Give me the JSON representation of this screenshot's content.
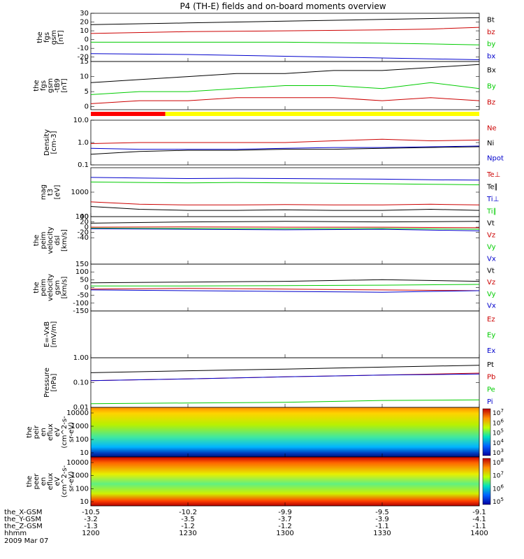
{
  "title": "P4 (TH-E) fields and on-board moments overview",
  "date_label": "2009 Mar 07",
  "chart_data": [
    {
      "type": "line",
      "panel": "fgs-gsm",
      "ylabel": [
        "the",
        "fgs",
        "gsm",
        "[nT]"
      ],
      "ylim": [
        -25,
        30
      ],
      "yticks": [
        30,
        20,
        10,
        0,
        -10,
        -20
      ],
      "series": [
        {
          "name": "Bt",
          "color": "#000000",
          "x": [
            1200,
            1230,
            1300,
            1330,
            1345,
            1400
          ],
          "values": [
            17,
            19,
            21,
            23,
            24,
            25
          ]
        },
        {
          "name": "bz",
          "color": "#cc0000",
          "x": [
            1200,
            1230,
            1300,
            1330,
            1345,
            1400
          ],
          "values": [
            7,
            9,
            10,
            11,
            12,
            14
          ]
        },
        {
          "name": "by",
          "color": "#00cc00",
          "x": [
            1200,
            1230,
            1300,
            1330,
            1345,
            1400
          ],
          "values": [
            -3,
            -3,
            -3,
            -4,
            -5,
            -6
          ]
        },
        {
          "name": "bx",
          "color": "#0000cc",
          "x": [
            1200,
            1230,
            1300,
            1330,
            1345,
            1400
          ],
          "values": [
            -16,
            -17,
            -19,
            -21,
            -22,
            -23
          ]
        }
      ]
    },
    {
      "type": "line",
      "panel": "fgs-gsm-tb",
      "ylabel": [
        "the",
        "fgs",
        "gsm",
        "-tB9",
        "[nT]"
      ],
      "ylim": [
        -1,
        15
      ],
      "yticks": [
        15,
        10,
        5,
        0
      ],
      "series": [
        {
          "name": "Bx",
          "color": "#000000",
          "x": [
            1200,
            1215,
            1230,
            1245,
            1300,
            1315,
            1330,
            1345,
            1400
          ],
          "values": [
            8,
            9,
            10,
            11,
            11,
            12,
            12,
            13,
            14
          ]
        },
        {
          "name": "By",
          "color": "#00cc00",
          "x": [
            1200,
            1215,
            1230,
            1245,
            1300,
            1315,
            1330,
            1345,
            1400
          ],
          "values": [
            4,
            5,
            5,
            6,
            7,
            7,
            6,
            8,
            6
          ]
        },
        {
          "name": "Bz",
          "color": "#cc0000",
          "x": [
            1200,
            1215,
            1230,
            1245,
            1300,
            1315,
            1330,
            1345,
            1400
          ],
          "values": [
            1,
            2,
            2,
            3,
            3,
            3,
            2,
            3,
            2
          ]
        }
      ]
    },
    {
      "type": "line",
      "panel": "density",
      "ylabel": [
        "Density",
        "[cm-3]"
      ],
      "scale": "log",
      "ylim": [
        0.1,
        10
      ],
      "yticks": [
        "10.0",
        "1.0",
        "0.1"
      ],
      "series": [
        {
          "name": "Ne",
          "color": "#cc0000",
          "x": [
            1200,
            1215,
            1230,
            1245,
            1300,
            1315,
            1330,
            1345,
            1400
          ],
          "values": [
            0.9,
            1.0,
            1.0,
            1.0,
            1.0,
            1.2,
            1.4,
            1.2,
            1.3
          ]
        },
        {
          "name": "Ni",
          "color": "#000000",
          "x": [
            1200,
            1215,
            1230,
            1245,
            1300,
            1315,
            1330,
            1345,
            1400
          ],
          "values": [
            0.3,
            0.4,
            0.45,
            0.45,
            0.5,
            0.5,
            0.55,
            0.6,
            0.65
          ]
        },
        {
          "name": "Npot",
          "color": "#0000cc",
          "x": [
            1200,
            1215,
            1230,
            1245,
            1300,
            1315,
            1330,
            1345,
            1400
          ],
          "values": [
            0.55,
            0.5,
            0.5,
            0.5,
            0.55,
            0.6,
            0.6,
            0.65,
            0.7
          ]
        }
      ]
    },
    {
      "type": "line",
      "panel": "temperature",
      "ylabel": [
        "mag",
        "t3",
        "[eV]"
      ],
      "scale": "log",
      "ylim": [
        100,
        10000
      ],
      "yticks": [
        "1000",
        "100"
      ],
      "series": [
        {
          "name": "Te⊥",
          "color": "#cc0000",
          "x": [
            1200,
            1215,
            1230,
            1245,
            1300,
            1315,
            1330,
            1345,
            1400
          ],
          "values": [
            400,
            320,
            300,
            300,
            310,
            300,
            300,
            320,
            300
          ]
        },
        {
          "name": "Te∥",
          "color": "#000000",
          "x": [
            1200,
            1215,
            1230,
            1245,
            1300,
            1315,
            1330,
            1345,
            1400
          ],
          "values": [
            260,
            200,
            180,
            180,
            190,
            180,
            180,
            200,
            180
          ]
        },
        {
          "name": "Ti⊥",
          "color": "#0000cc",
          "x": [
            1200,
            1215,
            1230,
            1245,
            1300,
            1315,
            1330,
            1345,
            1400
          ],
          "values": [
            4000,
            3800,
            3600,
            3700,
            3600,
            3500,
            3400,
            3200,
            3100
          ]
        },
        {
          "name": "Ti∥",
          "color": "#00cc00",
          "x": [
            1200,
            1215,
            1230,
            1245,
            1300,
            1315,
            1330,
            1345,
            1400
          ],
          "values": [
            2600,
            2500,
            2400,
            2500,
            2400,
            2300,
            2200,
            2100,
            2000
          ]
        }
      ]
    },
    {
      "type": "line",
      "panel": "peim-velocity",
      "ylabel": [
        "the",
        "peim",
        "velocity",
        "dsl",
        "[km/s]"
      ],
      "ylim": [
        -140,
        40
      ],
      "yticks": [
        40,
        20,
        0,
        -20,
        -40
      ],
      "series": [
        {
          "name": "Vt",
          "color": "#000000",
          "x": [
            1200,
            1230,
            1300,
            1330,
            1400
          ],
          "values": [
            15,
            20,
            22,
            20,
            22
          ]
        },
        {
          "name": "Vz",
          "color": "#cc0000",
          "x": [
            1200,
            1230,
            1300,
            1330,
            1400
          ],
          "values": [
            0,
            1,
            0,
            0,
            -2
          ]
        },
        {
          "name": "Vy",
          "color": "#00cc00",
          "x": [
            1200,
            1230,
            1300,
            1330,
            1400
          ],
          "values": [
            -4,
            -5,
            -6,
            -5,
            -8
          ]
        },
        {
          "name": "Vx",
          "color": "#0000cc",
          "x": [
            1200,
            1230,
            1300,
            1330,
            1400
          ],
          "values": [
            -6,
            -8,
            -10,
            -8,
            -14
          ]
        }
      ]
    },
    {
      "type": "line",
      "panel": "peim-velocity-gsm",
      "ylabel": [
        "the",
        "peim",
        "velocity",
        "gsm",
        "[km/s]"
      ],
      "ylim": [
        -150,
        150
      ],
      "yticks": [
        150,
        100,
        50,
        0,
        -50,
        -100,
        -150
      ],
      "series": [
        {
          "name": "Vt",
          "color": "#000000",
          "x": [
            1200,
            1230,
            1300,
            1330,
            1400
          ],
          "values": [
            30,
            35,
            40,
            50,
            40
          ]
        },
        {
          "name": "Vz",
          "color": "#cc0000",
          "x": [
            1200,
            1230,
            1300,
            1330,
            1400
          ],
          "values": [
            -10,
            -5,
            -10,
            -15,
            -20
          ]
        },
        {
          "name": "Vy",
          "color": "#00cc00",
          "x": [
            1200,
            1230,
            1300,
            1330,
            1400
          ],
          "values": [
            10,
            10,
            12,
            15,
            20
          ]
        },
        {
          "name": "Vx",
          "color": "#0000cc",
          "x": [
            1200,
            1230,
            1300,
            1330,
            1400
          ],
          "values": [
            -15,
            -20,
            -25,
            -30,
            -20
          ]
        }
      ]
    },
    {
      "type": "line",
      "panel": "e-field",
      "ylabel": [
        "E=-VxB",
        "[mV/m]"
      ],
      "ylim": [
        0,
        1
      ],
      "series": [
        {
          "name": "Ez",
          "color": "#cc0000"
        },
        {
          "name": "Ey",
          "color": "#00cc00"
        },
        {
          "name": "Ex",
          "color": "#0000cc"
        }
      ]
    },
    {
      "type": "line",
      "panel": "pressure",
      "ylabel": [
        "Pressure",
        "[nPa]"
      ],
      "scale": "log",
      "ylim": [
        0.01,
        1
      ],
      "yticks": [
        "1.00",
        "0.10",
        "0.01"
      ],
      "series": [
        {
          "name": "Pt",
          "color": "#000000",
          "x": [
            1200,
            1230,
            1300,
            1330,
            1400
          ],
          "values": [
            0.25,
            0.3,
            0.35,
            0.42,
            0.5
          ]
        },
        {
          "name": "Pb",
          "color": "#cc0000",
          "x": [
            1200,
            1230,
            1300,
            1330,
            1400
          ],
          "values": [
            0.12,
            0.14,
            0.17,
            0.2,
            0.24
          ]
        },
        {
          "name": "Pe",
          "color": "#00cc00",
          "x": [
            1200,
            1230,
            1300,
            1330,
            1400
          ],
          "values": [
            0.014,
            0.015,
            0.016,
            0.019,
            0.02
          ]
        },
        {
          "name": "Pi",
          "color": "#0000cc",
          "x": [
            1200,
            1230,
            1300,
            1330,
            1400
          ],
          "values": [
            0.12,
            0.14,
            0.17,
            0.2,
            0.22
          ]
        }
      ]
    },
    {
      "type": "heatmap",
      "panel": "peir-spectrogram",
      "ylabel": [
        "the",
        "peir",
        "en",
        "eflux",
        "eV",
        "(cm^2-s-",
        "sr-eV)"
      ],
      "scale": "log",
      "yticks": [
        "10000",
        "1000",
        "100",
        "10"
      ],
      "colorbar_ticks": [
        "10^7",
        "10^6",
        "10^5",
        "10^4",
        "10^3"
      ]
    },
    {
      "type": "heatmap",
      "panel": "peer-spectrogram",
      "ylabel": [
        "the",
        "peer",
        "en",
        "eflux",
        "eV",
        "(cm^2-s-",
        "sr-eV)"
      ],
      "scale": "log",
      "yticks": [
        "10000",
        "1000",
        "100",
        "10"
      ],
      "colorbar_ticks": [
        "10^8",
        "10^7",
        "10^6",
        "10^5"
      ]
    }
  ],
  "x_axis": {
    "row_labels": [
      "the_X-GSM",
      "the_Y-GSM",
      "the_Z-GSM",
      "hhmm"
    ],
    "columns": [
      {
        "x": 1200,
        "rows": [
          "-10.5",
          "-3.2",
          "-1.3",
          "1200"
        ]
      },
      {
        "x": 1230,
        "rows": [
          "-10.2",
          "-3.5",
          "-1.2",
          "1230"
        ]
      },
      {
        "x": 1300,
        "rows": [
          "-9.9",
          "-3.7",
          "-1.2",
          "1300"
        ]
      },
      {
        "x": 1330,
        "rows": [
          "-9.5",
          "-3.9",
          "-1.1",
          "1330"
        ]
      },
      {
        "x": 1400,
        "rows": [
          "-9.1",
          "-4.1",
          "-1.1",
          "1400"
        ]
      }
    ]
  },
  "mode_bar": {
    "segments": [
      {
        "from": 1200,
        "to": 1223,
        "color": "#ff0000"
      },
      {
        "from": 1223,
        "to": 1400,
        "color": "#ffff00"
      }
    ]
  }
}
